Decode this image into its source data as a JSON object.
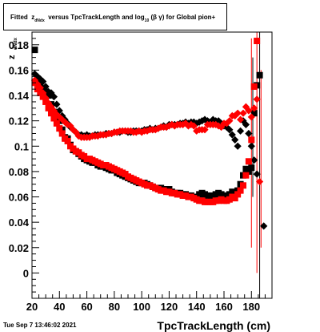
{
  "title": {
    "prefix": "Fitted",
    "z_symbol": "z",
    "z_subscript": "dNdx",
    "middle": "versus TpcTrackLength and log",
    "log_subscript": "10",
    "beta_gamma": "(β  γ)",
    "suffix": "for Global pion+"
  },
  "timestamp": "Tue Sep  7 13:46:02 2021",
  "chart_data": {
    "type": "scatter",
    "title": "Fitted z_dNdx versus TpcTrackLength and log_10 (β γ) for Global pion+",
    "xlabel": "TpcTrackLength (cm)",
    "ylabel_main": "z",
    "ylabel_sub": "dNdx",
    "xlim": [
      20,
      195
    ],
    "ylim": [
      -0.02,
      0.19
    ],
    "x_ticks": [
      20,
      40,
      60,
      80,
      100,
      120,
      140,
      160,
      180
    ],
    "y_ticks": [
      0,
      0.02,
      0.04,
      0.06,
      0.08,
      0.1,
      0.12,
      0.14,
      0.16,
      0.18
    ],
    "series": [
      {
        "color": "#000000",
        "marker": "diamond",
        "x": [
          22,
          24,
          26,
          28,
          30,
          32,
          34,
          36,
          38,
          40,
          42,
          44,
          46,
          48,
          50,
          52,
          54,
          56,
          58,
          60,
          62,
          64,
          66,
          68,
          70,
          72,
          74,
          76,
          78,
          80,
          82,
          84,
          86,
          88,
          90,
          92,
          94,
          96,
          98,
          100,
          102,
          104,
          106,
          108,
          110,
          112,
          114,
          116,
          118,
          120,
          122,
          124,
          126,
          128,
          130,
          132,
          134,
          136,
          138,
          140,
          142,
          144,
          146,
          148,
          150,
          152,
          154,
          156,
          158,
          160,
          162,
          164,
          166,
          168,
          170,
          172,
          174,
          176,
          178,
          180,
          182,
          184
        ],
        "y": [
          0.157,
          0.155,
          0.153,
          0.151,
          0.147,
          0.143,
          0.142,
          0.139,
          0.133,
          0.128,
          0.124,
          0.121,
          0.118,
          0.115,
          0.113,
          0.111,
          0.109,
          0.109,
          0.108,
          0.109,
          0.108,
          0.108,
          0.109,
          0.109,
          0.109,
          0.109,
          0.11,
          0.11,
          0.11,
          0.111,
          0.111,
          0.111,
          0.112,
          0.112,
          0.111,
          0.111,
          0.112,
          0.112,
          0.112,
          0.112,
          0.113,
          0.113,
          0.114,
          0.113,
          0.114,
          0.114,
          0.115,
          0.116,
          0.115,
          0.117,
          0.117,
          0.117,
          0.117,
          0.118,
          0.118,
          0.119,
          0.118,
          0.119,
          0.119,
          0.118,
          0.119,
          0.12,
          0.121,
          0.12,
          0.119,
          0.121,
          0.12,
          0.12,
          0.118,
          0.116,
          0.115,
          0.113,
          0.109,
          0.105,
          0.1,
          0.112,
          0.12,
          0.117,
          0.11,
          0.1,
          0.089,
          0.078
        ]
      },
      {
        "color": "#000000",
        "marker": "square",
        "x": [
          22,
          24,
          26,
          28,
          30,
          32,
          34,
          36,
          38,
          40,
          42,
          44,
          46,
          48,
          50,
          52,
          54,
          56,
          58,
          60,
          62,
          64,
          66,
          68,
          70,
          72,
          74,
          76,
          78,
          80,
          82,
          84,
          86,
          88,
          90,
          92,
          94,
          96,
          98,
          100,
          102,
          104,
          106,
          108,
          110,
          112,
          114,
          116,
          118,
          120,
          122,
          124,
          126,
          128,
          130,
          132,
          134,
          136,
          138,
          140,
          142,
          144,
          146,
          148,
          150,
          152,
          154,
          156,
          158,
          160,
          162,
          164,
          166,
          168,
          170,
          172,
          174,
          176,
          178,
          180,
          182,
          184,
          186
        ],
        "y": [
          0.176,
          0.152,
          0.148,
          0.145,
          0.143,
          0.14,
          0.133,
          0.127,
          0.124,
          0.12,
          0.113,
          0.107,
          0.106,
          0.101,
          0.097,
          0.096,
          0.094,
          0.092,
          0.09,
          0.089,
          0.088,
          0.087,
          0.087,
          0.085,
          0.084,
          0.084,
          0.083,
          0.082,
          0.081,
          0.081,
          0.079,
          0.078,
          0.077,
          0.076,
          0.075,
          0.074,
          0.073,
          0.072,
          0.071,
          0.071,
          0.071,
          0.07,
          0.069,
          0.068,
          0.067,
          0.067,
          0.067,
          0.066,
          0.066,
          0.066,
          0.064,
          0.063,
          0.063,
          0.063,
          0.062,
          0.062,
          0.061,
          0.061,
          0.06,
          0.06,
          0.062,
          0.063,
          0.062,
          0.061,
          0.06,
          0.061,
          0.062,
          0.063,
          0.062,
          0.061,
          0.06,
          0.062,
          0.064,
          0.063,
          0.065,
          0.07,
          0.077,
          0.082,
          0.08,
          0.083,
          0.126,
          0.148,
          0.156
        ]
      },
      {
        "color": "#ff0000",
        "marker": "diamond",
        "x": [
          22,
          24,
          26,
          28,
          30,
          32,
          34,
          36,
          38,
          40,
          42,
          44,
          46,
          48,
          50,
          52,
          54,
          56,
          58,
          60,
          62,
          64,
          66,
          68,
          70,
          72,
          74,
          76,
          78,
          80,
          82,
          84,
          86,
          88,
          90,
          92,
          94,
          96,
          98,
          100,
          102,
          104,
          106,
          108,
          110,
          112,
          114,
          116,
          118,
          120,
          122,
          124,
          126,
          128,
          130,
          132,
          134,
          136,
          138,
          140,
          142,
          144,
          146,
          148,
          150,
          152,
          154,
          156,
          158,
          160,
          162,
          164,
          166,
          168,
          170,
          172,
          174,
          176,
          178,
          180,
          182,
          184
        ],
        "y": [
          0.152,
          0.149,
          0.146,
          0.142,
          0.138,
          0.134,
          0.131,
          0.128,
          0.125,
          0.123,
          0.121,
          0.119,
          0.117,
          0.116,
          0.113,
          0.111,
          0.108,
          0.107,
          0.107,
          0.107,
          0.107,
          0.108,
          0.108,
          0.108,
          0.109,
          0.109,
          0.109,
          0.11,
          0.11,
          0.111,
          0.111,
          0.112,
          0.112,
          0.112,
          0.112,
          0.112,
          0.111,
          0.111,
          0.112,
          0.111,
          0.112,
          0.112,
          0.113,
          0.113,
          0.113,
          0.114,
          0.115,
          0.115,
          0.115,
          0.116,
          0.117,
          0.116,
          0.117,
          0.117,
          0.117,
          0.118,
          0.116,
          0.117,
          0.116,
          0.112,
          0.113,
          0.113,
          0.113,
          0.117,
          0.117,
          0.117,
          0.117,
          0.116,
          0.115,
          0.118,
          0.118,
          0.12,
          0.124,
          0.124,
          0.126,
          0.121,
          0.126,
          0.131,
          0.128,
          0.123,
          0.13,
          0.137
        ]
      },
      {
        "color": "#ff0000",
        "marker": "square",
        "x": [
          22,
          24,
          26,
          28,
          30,
          32,
          34,
          36,
          38,
          40,
          42,
          44,
          46,
          48,
          50,
          52,
          54,
          56,
          58,
          60,
          62,
          64,
          66,
          68,
          70,
          72,
          74,
          76,
          78,
          80,
          82,
          84,
          86,
          88,
          90,
          92,
          94,
          96,
          98,
          100,
          102,
          104,
          106,
          108,
          110,
          112,
          114,
          116,
          118,
          120,
          122,
          124,
          126,
          128,
          130,
          132,
          134,
          136,
          138,
          140,
          142,
          144,
          146,
          148,
          150,
          152,
          154,
          156,
          158,
          160,
          162,
          164,
          166,
          168,
          170,
          172,
          174,
          176,
          178,
          180,
          182,
          184
        ],
        "y": [
          0.15,
          0.145,
          0.142,
          0.139,
          0.135,
          0.13,
          0.126,
          0.122,
          0.118,
          0.114,
          0.11,
          0.106,
          0.104,
          0.1,
          0.098,
          0.096,
          0.095,
          0.093,
          0.092,
          0.09,
          0.09,
          0.089,
          0.088,
          0.087,
          0.086,
          0.085,
          0.085,
          0.084,
          0.083,
          0.082,
          0.081,
          0.08,
          0.079,
          0.078,
          0.076,
          0.075,
          0.074,
          0.073,
          0.072,
          0.071,
          0.07,
          0.069,
          0.069,
          0.068,
          0.067,
          0.066,
          0.065,
          0.065,
          0.064,
          0.064,
          0.063,
          0.063,
          0.062,
          0.062,
          0.061,
          0.061,
          0.06,
          0.06,
          0.059,
          0.058,
          0.057,
          0.057,
          0.056,
          0.056,
          0.056,
          0.056,
          0.057,
          0.057,
          0.058,
          0.057,
          0.057,
          0.058,
          0.06,
          0.059,
          0.062,
          0.065,
          0.069,
          0.077,
          0.088,
          0.105,
          0.147,
          0.183
        ]
      }
    ],
    "error_bars": [
      {
        "x": 180,
        "low": 0.02,
        "high": 0.185,
        "color": "#ff0000"
      },
      {
        "x": 181,
        "low": 0.06,
        "high": 0.17,
        "color": "#000000"
      },
      {
        "x": 184,
        "low": 0.0,
        "high": 0.19,
        "color": "#ff0000"
      },
      {
        "x": 186,
        "low": -0.02,
        "high": 0.19,
        "color": "#000000"
      },
      {
        "x": 187,
        "low": 0.02,
        "high": 0.16,
        "color": "#ff0000"
      },
      {
        "x": 186,
        "value": 0.072,
        "color": "#ff0000",
        "marker": "diamond"
      },
      {
        "x": 189,
        "value": 0.037,
        "color": "#000000",
        "marker": "diamond"
      }
    ]
  }
}
